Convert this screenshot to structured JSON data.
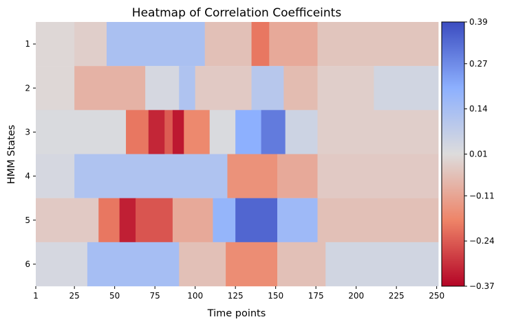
{
  "chart_data": {
    "type": "heatmap",
    "title": "Heatmap of Correlation Coefficeints",
    "xlabel": "Time points",
    "ylabel": "HMM States",
    "x_range": [
      1,
      250
    ],
    "x_ticks": [
      1,
      25,
      50,
      75,
      100,
      125,
      150,
      175,
      200,
      225,
      250
    ],
    "x_tick_labels": [
      "1",
      "25",
      "50",
      "75",
      "100",
      "125",
      "150",
      "175",
      "200",
      "225",
      "250"
    ],
    "y_categories": [
      "1",
      "2",
      "3",
      "4",
      "5",
      "6"
    ],
    "colormap": "coolwarm (reversed: blue = positive, red = negative)",
    "colorbar": {
      "min": -0.37,
      "max": 0.39,
      "ticks": [
        0.39,
        0.27,
        0.14,
        0.01,
        -0.11,
        -0.24,
        -0.37
      ],
      "tick_labels": [
        "0.39",
        "0.27",
        "0.14",
        "0.01",
        "−0.11",
        "−0.24",
        "−0.37"
      ]
    },
    "series": [
      {
        "state": "1",
        "segments": [
          {
            "from": 1,
            "to": 24,
            "value": 0.0
          },
          {
            "from": 25,
            "to": 44,
            "value": -0.02
          },
          {
            "from": 45,
            "to": 105,
            "value": 0.13
          },
          {
            "from": 106,
            "to": 134,
            "value": -0.05
          },
          {
            "from": 135,
            "to": 145,
            "value": -0.2
          },
          {
            "from": 146,
            "to": 175,
            "value": -0.1
          },
          {
            "from": 176,
            "to": 250,
            "value": -0.04
          }
        ]
      },
      {
        "state": "2",
        "segments": [
          {
            "from": 1,
            "to": 24,
            "value": 0.0
          },
          {
            "from": 25,
            "to": 68,
            "value": -0.08
          },
          {
            "from": 69,
            "to": 89,
            "value": 0.03
          },
          {
            "from": 90,
            "to": 99,
            "value": 0.12
          },
          {
            "from": 100,
            "to": 134,
            "value": -0.03
          },
          {
            "from": 135,
            "to": 154,
            "value": 0.1
          },
          {
            "from": 155,
            "to": 175,
            "value": -0.06
          },
          {
            "from": 176,
            "to": 210,
            "value": -0.02
          },
          {
            "from": 211,
            "to": 250,
            "value": 0.04
          }
        ]
      },
      {
        "state": "3",
        "segments": [
          {
            "from": 1,
            "to": 56,
            "value": 0.02
          },
          {
            "from": 57,
            "to": 70,
            "value": -0.2
          },
          {
            "from": 71,
            "to": 80,
            "value": -0.32
          },
          {
            "from": 81,
            "to": 85,
            "value": -0.24
          },
          {
            "from": 86,
            "to": 92,
            "value": -0.34
          },
          {
            "from": 93,
            "to": 108,
            "value": -0.17
          },
          {
            "from": 109,
            "to": 124,
            "value": 0.02
          },
          {
            "from": 125,
            "to": 140,
            "value": 0.2
          },
          {
            "from": 141,
            "to": 155,
            "value": 0.3
          },
          {
            "from": 156,
            "to": 175,
            "value": 0.05
          },
          {
            "from": 176,
            "to": 250,
            "value": -0.02
          }
        ]
      },
      {
        "state": "4",
        "segments": [
          {
            "from": 1,
            "to": 24,
            "value": 0.03
          },
          {
            "from": 25,
            "to": 119,
            "value": 0.12
          },
          {
            "from": 120,
            "to": 150,
            "value": -0.15
          },
          {
            "from": 151,
            "to": 175,
            "value": -0.1
          },
          {
            "from": 176,
            "to": 250,
            "value": -0.03
          }
        ]
      },
      {
        "state": "5",
        "segments": [
          {
            "from": 1,
            "to": 39,
            "value": -0.03
          },
          {
            "from": 40,
            "to": 52,
            "value": -0.2
          },
          {
            "from": 53,
            "to": 62,
            "value": -0.33
          },
          {
            "from": 63,
            "to": 85,
            "value": -0.25
          },
          {
            "from": 86,
            "to": 110,
            "value": -0.1
          },
          {
            "from": 111,
            "to": 124,
            "value": 0.18
          },
          {
            "from": 125,
            "to": 150,
            "value": 0.34
          },
          {
            "from": 151,
            "to": 175,
            "value": 0.16
          },
          {
            "from": 176,
            "to": 250,
            "value": -0.05
          }
        ]
      },
      {
        "state": "6",
        "segments": [
          {
            "from": 1,
            "to": 32,
            "value": 0.03
          },
          {
            "from": 33,
            "to": 89,
            "value": 0.14
          },
          {
            "from": 90,
            "to": 118,
            "value": -0.05
          },
          {
            "from": 119,
            "to": 150,
            "value": -0.16
          },
          {
            "from": 151,
            "to": 180,
            "value": -0.05
          },
          {
            "from": 181,
            "to": 250,
            "value": 0.04
          }
        ]
      }
    ]
  }
}
